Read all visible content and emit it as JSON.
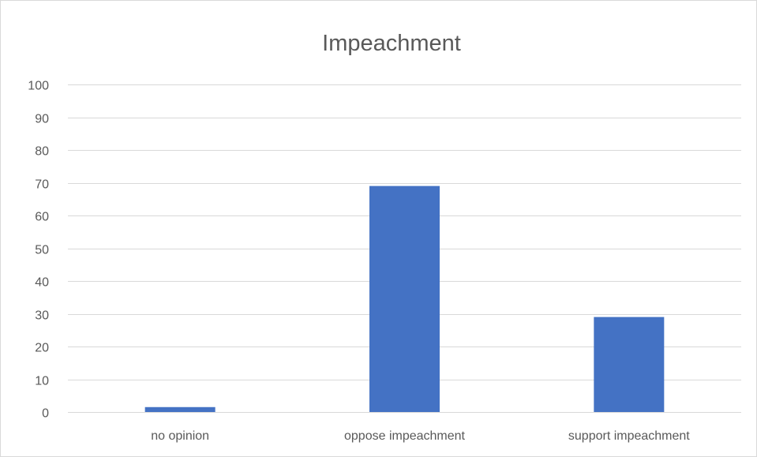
{
  "chart_data": {
    "type": "bar",
    "title": "Impeachment",
    "xlabel": "",
    "ylabel": "",
    "categories": [
      "no opinion",
      "oppose impeachment",
      "support impeachment"
    ],
    "series": [
      {
        "values": [
          1.5,
          69,
          29
        ],
        "color": "#4472c4"
      }
    ],
    "ylim": [
      0,
      100
    ],
    "yticks": [
      0,
      10,
      20,
      30,
      40,
      50,
      60,
      70,
      80,
      90,
      100
    ],
    "grid": true,
    "legend": "none"
  }
}
